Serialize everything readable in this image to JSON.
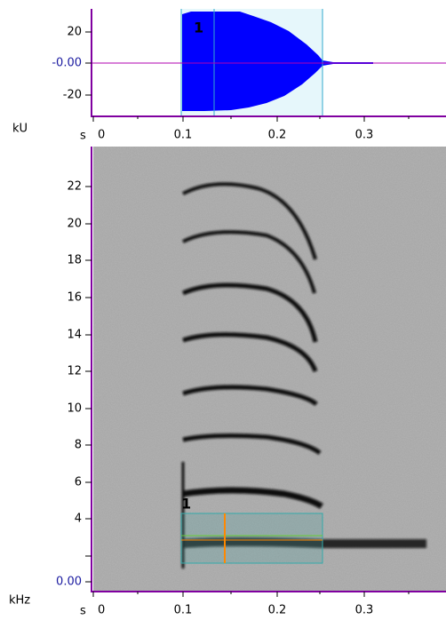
{
  "waveform": {
    "y_unit": "kU",
    "y_ticks": [
      "20",
      "-0.00",
      "-20"
    ],
    "x_unit": "s",
    "x_ticks": [
      "0",
      "0.1",
      "0.2",
      "0.3"
    ],
    "selection_label": "1"
  },
  "spectrogram": {
    "y_unit": "kHz",
    "y_ticks": [
      "22",
      "20",
      "18",
      "16",
      "14",
      "12",
      "10",
      "8",
      "6",
      "4",
      "0.00"
    ],
    "x_unit": "s",
    "x_ticks": [
      "0",
      "0.1",
      "0.2",
      "0.3"
    ],
    "selection_label": "1"
  }
}
